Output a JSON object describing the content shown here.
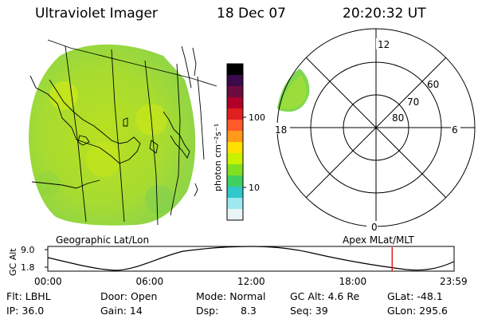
{
  "header": {
    "title": "Ultraviolet Imager",
    "date": "18 Dec 07",
    "time": "20:20:32 UT"
  },
  "colorbar": {
    "label": "photon cm⁻²s⁻¹",
    "ticks": [
      "100",
      "10"
    ],
    "colors": [
      "#000000",
      "#3a0a4a",
      "#6e0b3e",
      "#b0002a",
      "#e02020",
      "#ff5a2a",
      "#ff9a1a",
      "#ffe000",
      "#c8f000",
      "#80e020",
      "#40d060",
      "#30c8c8",
      "#a0e8f0",
      "#e8f4f6"
    ]
  },
  "left_panel": {
    "caption": "Geographic Lat/Lon"
  },
  "right_panel": {
    "caption": "Apex MLat/MLT",
    "mlt_labels": [
      "12",
      "6",
      "0",
      "18"
    ],
    "lat_labels": [
      "60",
      "70",
      "80"
    ]
  },
  "timeline": {
    "ylabel": "GC Alt",
    "y_ticks": [
      "9.0",
      "1.8"
    ],
    "x_ticks": [
      "00:00",
      "06:00",
      "12:00",
      "18:00",
      "23:59"
    ],
    "current_time_hours": 20.34,
    "marker_color": "#e00000"
  },
  "status": {
    "flt": "Flt: LBHL",
    "ip": "IP: 36.0",
    "door": "Door: Open",
    "gain": "Gain: 14",
    "mode": "Mode: Normal",
    "dsp_label": "Dsp:",
    "dsp_value": "8.3",
    "gc_alt": "GC Alt: 4.6 Re",
    "seq": "Seq: 39",
    "glat": "GLat: -48.1",
    "glon": "GLon: 295.6"
  }
}
